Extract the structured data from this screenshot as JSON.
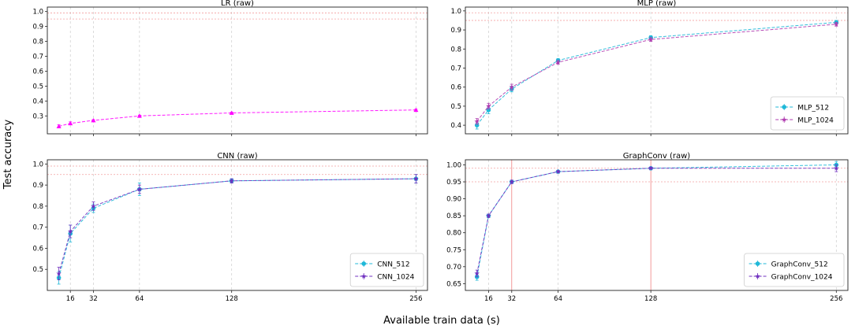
{
  "figure": {
    "ylabel": "Test accuracy",
    "xlabel": "Available train data (s)"
  },
  "chart_data": [
    {
      "type": "line",
      "title": "LR (raw)",
      "ylim": [
        0.18,
        1.03
      ],
      "yticks": [
        0.3,
        0.4,
        0.5,
        0.6,
        0.7,
        0.8,
        0.9,
        1.0
      ],
      "ytick_labels": [
        "0.3",
        "0.4",
        "0.5",
        "0.6",
        "0.7",
        "0.8",
        "0.9",
        "1.0"
      ],
      "xlim": [
        0,
        264
      ],
      "xticks": [
        16,
        32,
        64,
        128,
        256
      ],
      "xtick_labels": [],
      "x": [
        8,
        16,
        32,
        64,
        128,
        256
      ],
      "series": [
        {
          "values": [
            0.23,
            0.25,
            0.27,
            0.3,
            0.32,
            0.34
          ],
          "err": [
            0.01,
            0.01,
            0.005,
            0.005,
            0.005,
            0.005
          ],
          "color": "#ff00ff",
          "marker": "triangle"
        }
      ],
      "hlines": [
        0.95,
        0.99
      ],
      "vlines": [],
      "legend": null,
      "grid": true
    },
    {
      "type": "line",
      "title": "MLP (raw)",
      "ylim": [
        0.355,
        1.02
      ],
      "yticks": [
        0.4,
        0.5,
        0.6,
        0.7,
        0.8,
        0.9,
        1.0
      ],
      "ytick_labels": [
        "0.4",
        "0.5",
        "0.6",
        "0.7",
        "0.8",
        "0.9",
        "1.0"
      ],
      "xlim": [
        0,
        264
      ],
      "xticks": [
        16,
        32,
        64,
        128,
        256
      ],
      "xtick_labels": [],
      "x": [
        8,
        16,
        32,
        64,
        128,
        256
      ],
      "series": [
        {
          "name": "MLP_512",
          "values": [
            0.4,
            0.48,
            0.59,
            0.74,
            0.86,
            0.94
          ],
          "err": [
            0.02,
            0.02,
            0.015,
            0.01,
            0.01,
            0.01
          ],
          "color": "#1fb8d8",
          "marker": "circle"
        },
        {
          "name": "MLP_1024",
          "values": [
            0.42,
            0.5,
            0.6,
            0.73,
            0.85,
            0.93
          ],
          "err": [
            0.015,
            0.015,
            0.015,
            0.01,
            0.01,
            0.01
          ],
          "color": "#b03cb0",
          "marker": "star"
        }
      ],
      "hlines": [
        0.95,
        0.99
      ],
      "vlines": [],
      "legend": "bottom-right",
      "grid": true
    },
    {
      "type": "line",
      "title": "CNN (raw)",
      "ylim": [
        0.4,
        1.02
      ],
      "yticks": [
        0.5,
        0.6,
        0.7,
        0.8,
        0.9,
        1.0
      ],
      "ytick_labels": [
        "0.5",
        "0.6",
        "0.7",
        "0.8",
        "0.9",
        "1.0"
      ],
      "xlim": [
        0,
        264
      ],
      "xticks": [
        16,
        32,
        64,
        128,
        256
      ],
      "xtick_labels": [
        "16",
        "32",
        "64",
        "128",
        "256"
      ],
      "x": [
        8,
        16,
        32,
        64,
        128,
        256
      ],
      "series": [
        {
          "name": "CNN_512",
          "values": [
            0.46,
            0.67,
            0.79,
            0.88,
            0.92,
            0.93
          ],
          "err": [
            0.03,
            0.04,
            0.02,
            0.03,
            0.01,
            0.02
          ],
          "color": "#1fb8d8",
          "marker": "circle"
        },
        {
          "name": "CNN_1024",
          "values": [
            0.48,
            0.68,
            0.8,
            0.88,
            0.92,
            0.93
          ],
          "err": [
            0.03,
            0.03,
            0.02,
            0.02,
            0.01,
            0.02
          ],
          "color": "#7030c0",
          "marker": "star"
        }
      ],
      "hlines": [
        0.95,
        0.99
      ],
      "vlines": [],
      "legend": "bottom-right",
      "grid": true
    },
    {
      "type": "line",
      "title": "GraphConv (raw)",
      "ylim": [
        0.63,
        1.015
      ],
      "yticks": [
        0.65,
        0.7,
        0.75,
        0.8,
        0.85,
        0.9,
        0.95,
        1.0
      ],
      "ytick_labels": [
        "0.65",
        "0.70",
        "0.75",
        "0.80",
        "0.85",
        "0.90",
        "0.95",
        "1.00"
      ],
      "xlim": [
        0,
        264
      ],
      "xticks": [
        16,
        32,
        64,
        128,
        256
      ],
      "xtick_labels": [
        "16",
        "32",
        "64",
        "128",
        "256"
      ],
      "x": [
        8,
        16,
        32,
        64,
        128,
        256
      ],
      "series": [
        {
          "name": "GraphConv_512",
          "values": [
            0.67,
            0.85,
            0.95,
            0.98,
            0.99,
            1.0
          ],
          "err": [
            0.01,
            0.005,
            0.005,
            0.003,
            0.003,
            0.01
          ],
          "color": "#1fb8d8",
          "marker": "circle"
        },
        {
          "name": "GraphConv_1024",
          "values": [
            0.68,
            0.85,
            0.95,
            0.98,
            0.99,
            0.99
          ],
          "err": [
            0.01,
            0.005,
            0.005,
            0.003,
            0.003,
            0.01
          ],
          "color": "#7030c0",
          "marker": "star"
        }
      ],
      "hlines": [
        0.95,
        0.99
      ],
      "vlines": [
        32,
        128
      ],
      "legend": "bottom-right",
      "grid": true
    }
  ]
}
